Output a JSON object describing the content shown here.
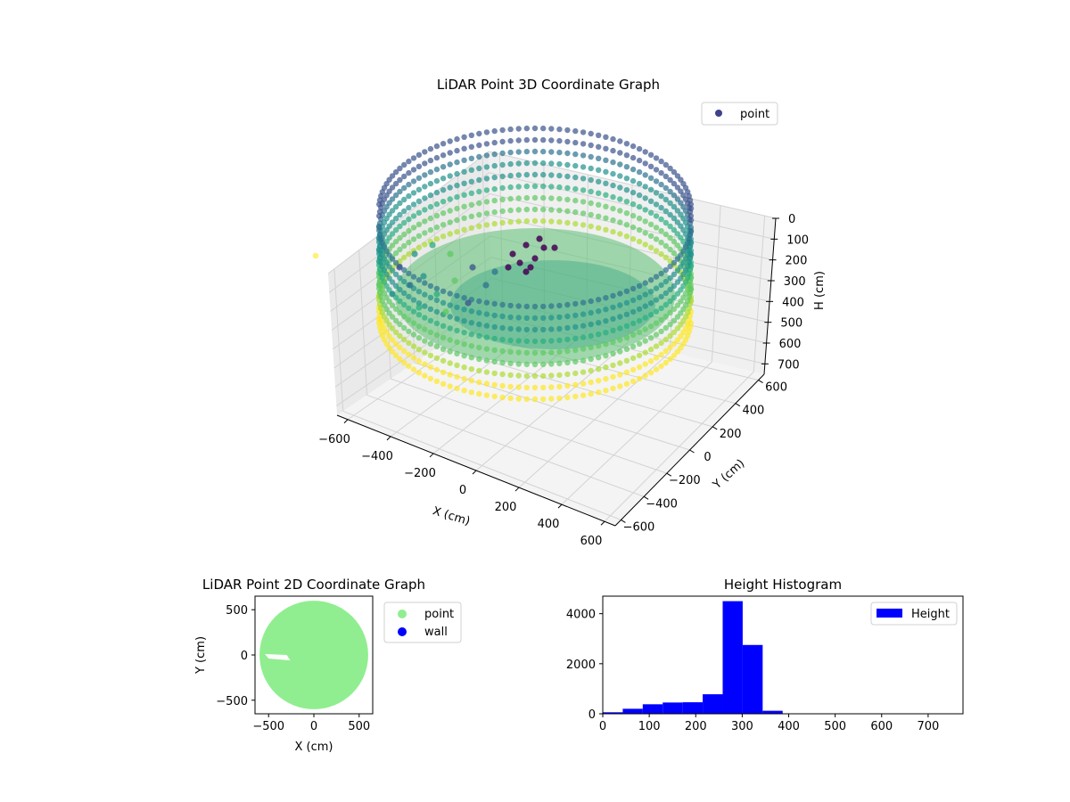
{
  "figure": {
    "chart3d_title": "LiDAR Point 3D Coordinate Graph",
    "chart2d_title": "LiDAR Point 2D Coordinate Graph",
    "hist_title": "Height Histogram"
  },
  "chart_data": [
    {
      "id": "scatter3d",
      "type": "scatter",
      "title": "LiDAR Point 3D Coordinate Graph",
      "xlabel": "X (cm)",
      "ylabel": "Y (cm)",
      "zlabel": "H (cm)",
      "x_ticks": [
        -600,
        -400,
        -200,
        0,
        200,
        400,
        600
      ],
      "y_ticks": [
        -600,
        -400,
        -200,
        0,
        200,
        400,
        600
      ],
      "z_ticks": [
        0,
        100,
        200,
        300,
        400,
        500,
        600,
        700
      ],
      "xlim": [
        -650,
        650
      ],
      "ylim": [
        -650,
        650
      ],
      "zlim": [
        750,
        0
      ],
      "legend": {
        "entries": [
          "point"
        ],
        "placement": "top-right"
      },
      "colormap": "viridis",
      "colors": {
        "legend_marker": "#3f418b"
      },
      "series": [
        {
          "name": "point",
          "description_radius_cm": 600,
          "height_range_cm": [
            260,
            360
          ],
          "outlier": {
            "x": -650,
            "y": -580,
            "h": 30
          }
        }
      ]
    },
    {
      "id": "scatter2d",
      "type": "scatter",
      "title": "LiDAR Point 2D Coordinate Graph",
      "xlabel": "X (cm)",
      "ylabel": "Y (cm)",
      "x_ticks": [
        -500,
        0,
        500
      ],
      "y_ticks": [
        -500,
        0,
        500
      ],
      "xlim": [
        -650,
        650
      ],
      "ylim": [
        -650,
        650
      ],
      "legend": {
        "entries": [
          "point",
          "wall"
        ],
        "placement": "outside-right"
      },
      "colors": {
        "point": "#90ee90",
        "wall": "#0000ff"
      },
      "series": [
        {
          "name": "point",
          "shape": "disc",
          "center": [
            0,
            0
          ],
          "radius": 600
        },
        {
          "name": "wall",
          "values": []
        }
      ]
    },
    {
      "id": "hist",
      "type": "bar",
      "title": "Height Histogram",
      "x_ticks": [
        0,
        100,
        200,
        300,
        400,
        500,
        600,
        700
      ],
      "y_ticks": [
        0,
        2000,
        4000
      ],
      "xlim": [
        0,
        775
      ],
      "ylim": [
        0,
        4700
      ],
      "legend": {
        "entries": [
          "Height"
        ],
        "placement": "top-right"
      },
      "colors": {
        "bar": "#0000ff"
      },
      "series": [
        {
          "name": "Height",
          "bin_edges": [
            0,
            43,
            86,
            129,
            172,
            215,
            258,
            301,
            344,
            387,
            430,
            473,
            516,
            559,
            602,
            645,
            688,
            731,
            774
          ],
          "values": [
            60,
            200,
            380,
            450,
            460,
            780,
            4500,
            2750,
            120,
            10,
            5,
            5,
            3,
            3,
            3,
            3,
            3,
            3
          ]
        }
      ]
    }
  ]
}
